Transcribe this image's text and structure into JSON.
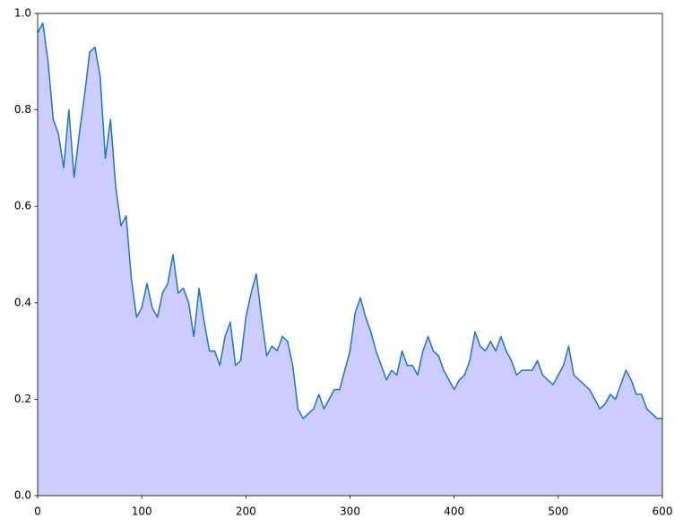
{
  "chart_data": {
    "type": "area",
    "x": [
      0,
      5,
      10,
      15,
      20,
      25,
      30,
      35,
      40,
      45,
      50,
      55,
      60,
      65,
      70,
      75,
      80,
      85,
      90,
      95,
      100,
      105,
      110,
      115,
      120,
      125,
      130,
      135,
      140,
      145,
      150,
      155,
      160,
      165,
      170,
      175,
      180,
      185,
      190,
      195,
      200,
      205,
      210,
      215,
      220,
      225,
      230,
      235,
      240,
      245,
      250,
      255,
      260,
      265,
      270,
      275,
      280,
      285,
      290,
      295,
      300,
      305,
      310,
      315,
      320,
      325,
      330,
      335,
      340,
      345,
      350,
      355,
      360,
      365,
      370,
      375,
      380,
      385,
      390,
      395,
      400,
      405,
      410,
      415,
      420,
      425,
      430,
      435,
      440,
      445,
      450,
      455,
      460,
      465,
      470,
      475,
      480,
      485,
      490,
      495,
      500,
      505,
      510,
      515,
      520,
      525,
      530,
      535,
      540,
      545,
      550,
      555,
      560,
      565,
      570,
      575,
      580,
      585,
      590,
      595,
      600
    ],
    "series": [
      {
        "color": "#1f77b4",
        "fill_color": "#ccccff",
        "values": [
          0.96,
          0.98,
          0.9,
          0.78,
          0.75,
          0.68,
          0.8,
          0.66,
          0.75,
          0.83,
          0.92,
          0.93,
          0.87,
          0.7,
          0.78,
          0.64,
          0.56,
          0.58,
          0.45,
          0.37,
          0.39,
          0.44,
          0.39,
          0.37,
          0.42,
          0.44,
          0.5,
          0.42,
          0.43,
          0.4,
          0.33,
          0.43,
          0.36,
          0.3,
          0.3,
          0.27,
          0.33,
          0.36,
          0.27,
          0.28,
          0.37,
          0.42,
          0.46,
          0.37,
          0.29,
          0.31,
          0.3,
          0.33,
          0.32,
          0.27,
          0.18,
          0.16,
          0.17,
          0.18,
          0.21,
          0.18,
          0.2,
          0.22,
          0.22,
          0.26,
          0.3,
          0.38,
          0.41,
          0.37,
          0.34,
          0.3,
          0.27,
          0.24,
          0.26,
          0.25,
          0.3,
          0.27,
          0.27,
          0.25,
          0.3,
          0.33,
          0.3,
          0.29,
          0.26,
          0.24,
          0.22,
          0.24,
          0.25,
          0.28,
          0.34,
          0.31,
          0.3,
          0.32,
          0.3,
          0.33,
          0.3,
          0.28,
          0.25,
          0.26,
          0.26,
          0.26,
          0.28,
          0.25,
          0.24,
          0.23,
          0.25,
          0.27,
          0.31,
          0.25,
          0.24,
          0.23,
          0.22,
          0.2,
          0.18,
          0.19,
          0.21,
          0.2,
          0.23,
          0.26,
          0.24,
          0.21,
          0.21,
          0.18,
          0.17,
          0.16,
          0.16
        ]
      }
    ],
    "xlim": [
      0,
      600
    ],
    "xticks": [
      0,
      100,
      200,
      300,
      400,
      500,
      600
    ],
    "ylim": [
      0,
      1
    ],
    "yticks": [
      {
        "value": 0,
        "label": "0.0"
      },
      0.2,
      0.4,
      0.6,
      0.8,
      {
        "value": 1,
        "label": "1.0"
      }
    ],
    "grid": false
  }
}
